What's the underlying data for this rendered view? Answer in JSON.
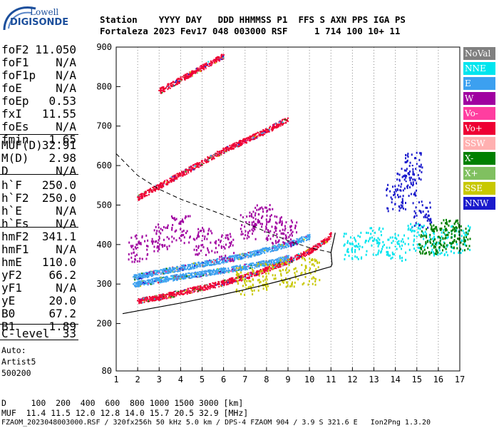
{
  "logo": {
    "line1": "Lowell",
    "line2": "DIGISONDE"
  },
  "header": {
    "line1": "Station    YYYY DAY   DDD HHMMSS P1  FFS S AXN PPS IGA PS",
    "line2": "Fortaleza 2023 Fev17 048 003000 RSF     1 714 100 10+ 11"
  },
  "params": {
    "group1": [
      {
        "name": "foF2",
        "value": "11.050"
      },
      {
        "name": "foF1",
        "value": "N/A"
      },
      {
        "name": "foF1p",
        "value": "N/A"
      },
      {
        "name": "foE",
        "value": "N/A"
      },
      {
        "name": "foEp",
        "value": "0.53"
      },
      {
        "name": "fxI",
        "value": "11.55"
      },
      {
        "name": "foEs",
        "value": "N/A"
      },
      {
        "name": "fmin",
        "value": "1.65"
      }
    ],
    "group2": [
      {
        "name": "MUF(D)",
        "value": "32.91"
      },
      {
        "name": "M(D)",
        "value": "2.98"
      },
      {
        "name": "D",
        "value": "N/A"
      }
    ],
    "group3": [
      {
        "name": "h`F",
        "value": "250.0"
      },
      {
        "name": "h`F2",
        "value": "250.0"
      },
      {
        "name": "h`E",
        "value": "N/A"
      },
      {
        "name": "h`Es",
        "value": "N/A"
      }
    ],
    "group4": [
      {
        "name": "hmF2",
        "value": "341.1"
      },
      {
        "name": "hmF1",
        "value": "N/A"
      },
      {
        "name": "hmE",
        "value": "110.0"
      },
      {
        "name": "yF2",
        "value": "66.2"
      },
      {
        "name": "yF1",
        "value": "N/A"
      },
      {
        "name": "yE",
        "value": "20.0"
      },
      {
        "name": "B0",
        "value": "67.2"
      },
      {
        "name": "B1",
        "value": "1.89"
      }
    ],
    "group5": [
      {
        "name": "C-level",
        "value": "33"
      }
    ],
    "auto": [
      "Auto:",
      "Artist5",
      "500200"
    ]
  },
  "legend": [
    {
      "label": "NoVal",
      "color": "#808080"
    },
    {
      "label": "NNE",
      "color": "#00e5ee"
    },
    {
      "label": "E",
      "color": "#3ca0f0"
    },
    {
      "label": "W",
      "color": "#a000a0"
    },
    {
      "label": "Vo-",
      "color": "#ff3ea0"
    },
    {
      "label": "Vo+",
      "color": "#ee0033"
    },
    {
      "label": "SSW",
      "color": "#ffb0b0"
    },
    {
      "label": "X-",
      "color": "#008000"
    },
    {
      "label": "X+",
      "color": "#80c060"
    },
    {
      "label": "SSE",
      "color": "#c8c800"
    },
    {
      "label": "NNW",
      "color": "#1a1acc"
    }
  ],
  "footer": {
    "d_line": "D     100  200  400  600  800 1000 1500 3000 [km]",
    "muf_line": "MUF  11.4 11.5 12.0 12.8 14.0 15.7 20.5 32.9 [MHz]",
    "file_line": "FZAOM_2023048003000.RSF / 320fx256h 50 kHz 5.0 km / DPS-4 FZAOM 904 / 3.9 S 321.6 E   Ion2Png 1.3.20"
  },
  "chart_data": {
    "type": "scatter",
    "xlim": [
      1,
      17
    ],
    "ylim": [
      80,
      900
    ],
    "x_ticks": [
      1,
      2,
      3,
      4,
      5,
      6,
      7,
      8,
      9,
      10,
      11,
      12,
      13,
      14,
      15,
      16,
      17
    ],
    "y_ticks": [
      80,
      200,
      300,
      400,
      500,
      600,
      700,
      800,
      900
    ],
    "grid": "vertical-dotted",
    "legend_position": "right",
    "series": [
      {
        "name": "Vo+",
        "color": "#ee0033",
        "style": "trace",
        "x": [
          2.0,
          3.0,
          4.0,
          5.0,
          6.0,
          7.0,
          8.0,
          9.0,
          10.0,
          10.7,
          11.0
        ],
        "y": [
          258,
          268,
          280,
          292,
          305,
          320,
          340,
          360,
          385,
          410,
          428
        ]
      },
      {
        "name": "E",
        "color": "#3ca0f0",
        "style": "trace",
        "x": [
          1.8,
          3.0,
          4.0,
          5.0,
          6.0,
          7.0,
          8.0,
          9.0,
          10.0
        ],
        "y": [
          318,
          332,
          342,
          352,
          362,
          374,
          388,
          402,
          422
        ]
      },
      {
        "name": "E",
        "color": "#3ca0f0",
        "style": "trace",
        "x": [
          1.8,
          3.0,
          4.0,
          5.0,
          6.0,
          7.0,
          8.0,
          9.0
        ],
        "y": [
          300,
          312,
          320,
          328,
          336,
          345,
          355,
          368
        ]
      },
      {
        "name": "W",
        "color": "#a000a0",
        "style": "cloud",
        "x": [
          2.0,
          3.0,
          4.0,
          5.0,
          6.0
        ],
        "y": [
          392,
          420,
          440,
          410,
          395
        ]
      },
      {
        "name": "W",
        "color": "#a000a0",
        "style": "cloud",
        "x": [
          7.2,
          7.8,
          8.4,
          9.0
        ],
        "y": [
          450,
          470,
          440,
          430
        ]
      },
      {
        "name": "Vo+",
        "color": "#ee0033",
        "style": "trace",
        "x": [
          2.0,
          3.0,
          4.0,
          5.0,
          6.0,
          7.0,
          8.0,
          9.0
        ],
        "y": [
          520,
          550,
          580,
          610,
          640,
          665,
          690,
          720
        ]
      },
      {
        "name": "Vo+",
        "color": "#ee0033",
        "style": "trace",
        "x": [
          3.0,
          4.0,
          5.0,
          6.0
        ],
        "y": [
          790,
          820,
          850,
          880
        ]
      },
      {
        "name": "NNW",
        "color": "#1a1acc",
        "style": "cloud",
        "x": [
          14.0,
          14.5,
          14.8,
          15.2
        ],
        "y": [
          520,
          560,
          600,
          480
        ]
      },
      {
        "name": "NNE",
        "color": "#00e5ee",
        "style": "cloud",
        "x": [
          12.0,
          13.0,
          14.0,
          15.0,
          16.0,
          17.0
        ],
        "y": [
          400,
          410,
          395,
          420,
          405,
          415
        ]
      },
      {
        "name": "X-",
        "color": "#008000",
        "style": "cloud",
        "x": [
          15.5,
          16.0,
          16.5,
          17.0
        ],
        "y": [
          410,
          420,
          430,
          415
        ]
      },
      {
        "name": "SSE",
        "color": "#c8c800",
        "style": "cloud",
        "x": [
          7.0,
          8.0,
          9.0,
          10.0
        ],
        "y": [
          310,
          320,
          330,
          335
        ]
      }
    ],
    "profile_curve": {
      "x": [
        1.3,
        2.0,
        3.0,
        4.0,
        5.0,
        6.0,
        7.0,
        8.0,
        9.0,
        10.0,
        10.6,
        11.0,
        11.05
      ],
      "y": [
        225,
        232,
        242,
        252,
        263,
        274,
        286,
        299,
        313,
        328,
        338,
        344,
        350
      ]
    },
    "muf_curve": {
      "x": [
        1.0,
        2.0,
        3.0,
        4.0,
        5.0,
        6.0,
        7.0,
        8.0,
        9.0,
        10.0,
        11.0
      ],
      "y": [
        630,
        575,
        540,
        515,
        495,
        475,
        455,
        432,
        410,
        392,
        380
      ]
    }
  }
}
